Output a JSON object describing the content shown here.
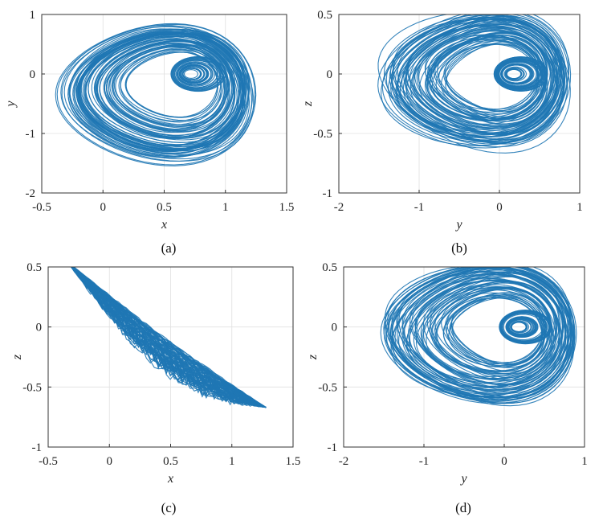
{
  "figure_colors": {
    "trajectory": "#1f77b4",
    "axes": "#333333",
    "grid": "#e0e0e0"
  },
  "chart_data": [
    {
      "type": "line",
      "id": "a",
      "caption": "(a)",
      "xlabel": "x",
      "ylabel": "y",
      "xlim": [
        -0.5,
        1.5
      ],
      "ylim": [
        -2,
        1
      ],
      "xticks": [
        -0.5,
        0,
        0.5,
        1,
        1.5
      ],
      "xtick_labels": [
        "-0.5",
        "0",
        "0.5",
        "1",
        "1.5"
      ],
      "yticks": [
        -2,
        -1,
        0,
        1
      ],
      "ytick_labels": [
        "-2",
        "-1",
        "0",
        "1"
      ],
      "grid": true,
      "series": [
        {
          "name": "x-y projection",
          "color": "#1f77b4"
        }
      ],
      "attractor": {
        "outer": {
          "cx": 0.43,
          "cy": -0.35,
          "rx": 0.82,
          "ry": 1.18
        },
        "eye": {
          "cx": 0.7,
          "cy": 0.0
        },
        "xAxis": "x",
        "yAxis": "y"
      }
    },
    {
      "type": "line",
      "id": "b",
      "caption": "(b)",
      "xlabel": "y",
      "ylabel": "z",
      "xlim": [
        -2,
        1
      ],
      "ylim": [
        -1,
        0.5
      ],
      "xticks": [
        -2,
        -1,
        0,
        1
      ],
      "xtick_labels": [
        "-2",
        "-1",
        "0",
        "1"
      ],
      "yticks": [
        -1,
        -0.5,
        0,
        0.5
      ],
      "ytick_labels": [
        "-1",
        "-0.5",
        "0",
        "0.5"
      ],
      "grid": true,
      "series": [
        {
          "name": "y-z projection",
          "color": "#1f77b4"
        }
      ],
      "attractor": {
        "outer": {
          "cx": -0.32,
          "cy": -0.05,
          "rx": 1.22,
          "ry": 0.58
        },
        "eye": {
          "cx": 0.15,
          "cy": 0.0
        },
        "xAxis": "y",
        "yAxis": "z"
      }
    },
    {
      "type": "line",
      "id": "c",
      "caption": "(c)",
      "xlabel": "x",
      "ylabel": "z",
      "xlim": [
        -0.5,
        1.5
      ],
      "ylim": [
        -1,
        0.5
      ],
      "xticks": [
        -0.5,
        0,
        0.5,
        1,
        1.5
      ],
      "xtick_labels": [
        "-0.5",
        "0",
        "0.5",
        "1",
        "1.5"
      ],
      "yticks": [
        -1,
        -0.5,
        0,
        0.5
      ],
      "ytick_labels": [
        "-1",
        "-0.5",
        "0",
        "0.5"
      ],
      "grid": true,
      "series": [
        {
          "name": "x-z projection",
          "color": "#1f77b4"
        }
      ],
      "attractor": {
        "band": {
          "x0": -0.35,
          "z0": 0.55,
          "x1": 1.28,
          "z1": -0.67
        },
        "xAxis": "x",
        "yAxis": "z"
      }
    },
    {
      "type": "line",
      "id": "d",
      "caption": "(d)",
      "xlabel": "y",
      "ylabel": "z",
      "xlim": [
        -2,
        1
      ],
      "ylim": [
        -1,
        0.5
      ],
      "xticks": [
        -2,
        -1,
        0,
        1
      ],
      "xtick_labels": [
        "-2",
        "-1",
        "0",
        "1"
      ],
      "yticks": [
        -1,
        -0.5,
        0,
        0.5
      ],
      "ytick_labels": [
        "-1",
        "-0.5",
        "0",
        "0.5"
      ],
      "grid": true,
      "series": [
        {
          "name": "y-z projection",
          "color": "#1f77b4"
        }
      ],
      "attractor": {
        "outer": {
          "cx": -0.32,
          "cy": -0.05,
          "rx": 1.22,
          "ry": 0.58
        },
        "eye": {
          "cx": 0.15,
          "cy": 0.0
        },
        "xAxis": "y",
        "yAxis": "z"
      }
    }
  ]
}
